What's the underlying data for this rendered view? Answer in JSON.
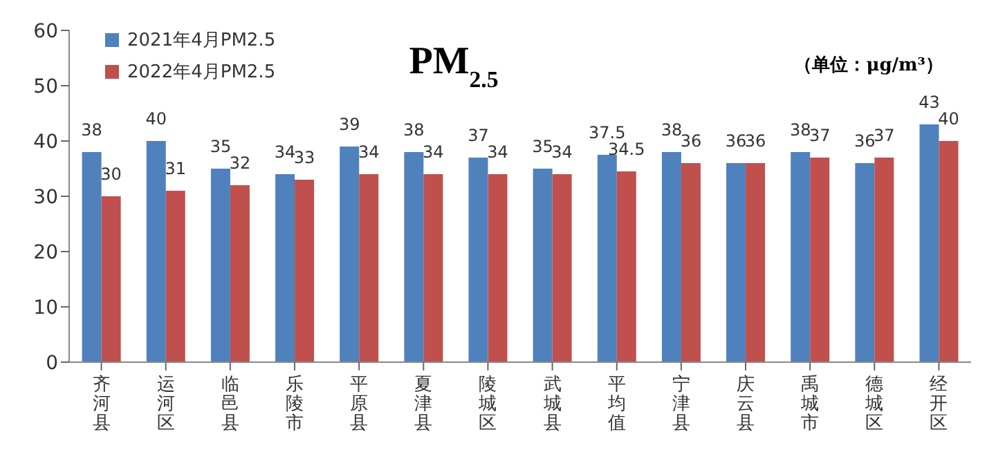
{
  "chart_data": {
    "type": "bar",
    "title": "PM$_{2.5}$",
    "annotations": [
      "（单位：μg/m³）"
    ],
    "categories": [
      "齐河县",
      "运河区",
      "临邑县",
      "乐陵市",
      "平原县",
      "夏津县",
      "陵城区",
      "武城县",
      "平均值",
      "宁津县",
      "庆云县",
      "禹城市",
      "德城区",
      "经开区"
    ],
    "series": [
      {
        "name": "2021年4月PM2.5",
        "color": "#4f81bd",
        "values": [
          38,
          40,
          35,
          34,
          39,
          38,
          37,
          35,
          37.5,
          38,
          36,
          38,
          36,
          43
        ]
      },
      {
        "name": "2022年4月PM2.5",
        "color": "#c0504d",
        "values": [
          30,
          31,
          32,
          33,
          34,
          34,
          34,
          34,
          34.5,
          36,
          36,
          37,
          37,
          40
        ]
      }
    ],
    "ylim": [
      0,
      60
    ],
    "yticks": [
      0,
      10,
      20,
      30,
      40,
      50,
      60
    ],
    "data_labels": true,
    "legend": "top left"
  }
}
